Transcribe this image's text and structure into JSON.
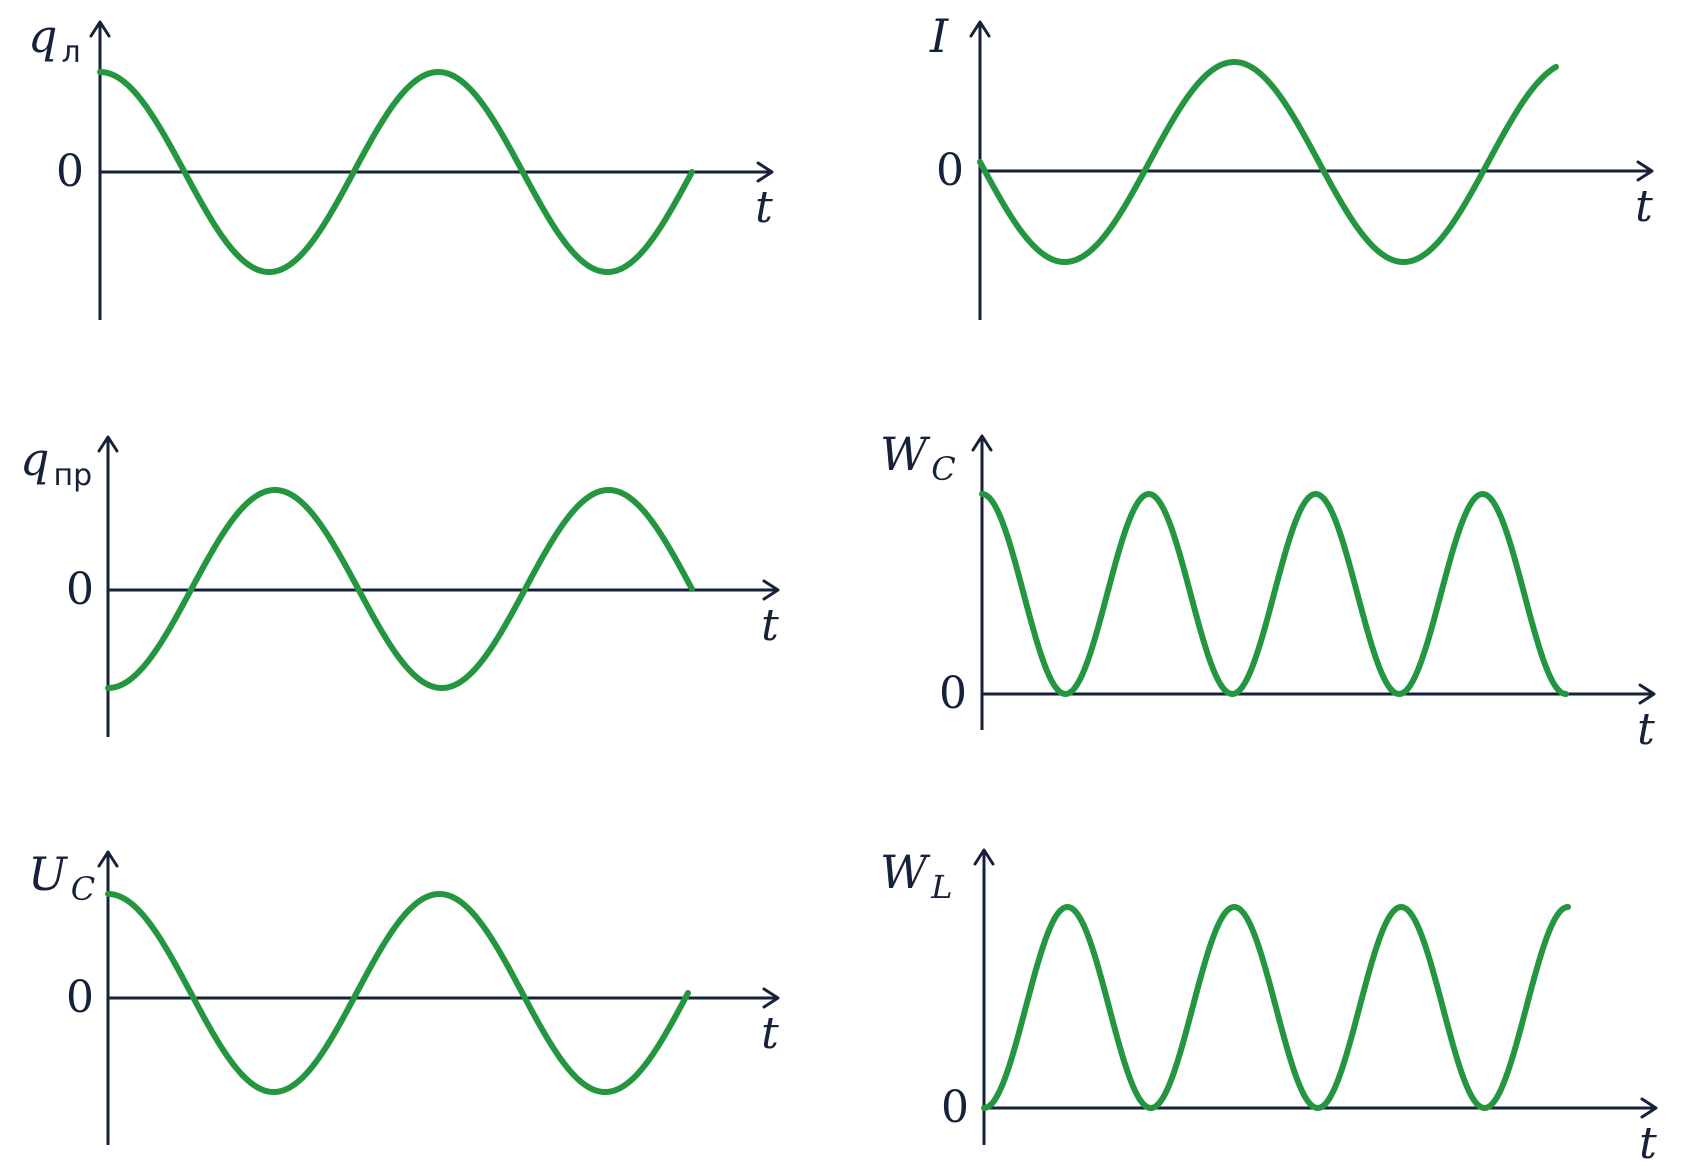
{
  "colors": {
    "curve": "#23963f",
    "axis": "#16213a"
  },
  "chart_data": [
    {
      "type": "line",
      "ylabel": "q",
      "ylabel_sub": "л",
      "ylabel_sub_style": "upright",
      "xlabel": "t",
      "zero_label": "0",
      "function": "cos",
      "cycles": 1.75,
      "y_range": [
        -1,
        1
      ],
      "series": [
        {
          "x": [
            0,
            0.25,
            0.5,
            0.75,
            1,
            1.25,
            1.5,
            1.75
          ],
          "values": [
            1,
            0,
            -1,
            0,
            1,
            0,
            -1,
            0
          ]
        }
      ]
    },
    {
      "type": "line",
      "ylabel": "I",
      "ylabel_sub": "",
      "ylabel_sub_style": "italic",
      "xlabel": "t",
      "zero_label": "0",
      "function": "-sin",
      "cycles": 1.7,
      "y_range": [
        -1,
        1
      ],
      "series": [
        {
          "x": [
            0,
            0.25,
            0.5,
            0.75,
            1,
            1.25,
            1.5,
            1.7
          ],
          "values": [
            0,
            -1,
            0,
            1,
            0,
            -1,
            0,
            0.95
          ]
        }
      ]
    },
    {
      "type": "line",
      "ylabel": "q",
      "ylabel_sub": "пр",
      "ylabel_sub_style": "upright",
      "xlabel": "t",
      "zero_label": "0",
      "function": "-cos",
      "cycles": 1.75,
      "y_range": [
        -1,
        1
      ],
      "series": [
        {
          "x": [
            0,
            0.25,
            0.5,
            0.75,
            1,
            1.25,
            1.5,
            1.75
          ],
          "values": [
            -1,
            0,
            1,
            0,
            -1,
            0,
            1,
            0
          ]
        }
      ]
    },
    {
      "type": "line",
      "ylabel": "W",
      "ylabel_sub": "C",
      "ylabel_sub_style": "italic",
      "xlabel": "t",
      "zero_label": "0",
      "function": "cos2",
      "cycles": 1.75,
      "y_range": [
        0,
        1
      ],
      "series": [
        {
          "x": [
            0,
            0.25,
            0.5,
            0.75,
            1,
            1.25,
            1.5,
            1.75
          ],
          "values": [
            1,
            0,
            1,
            0,
            1,
            0,
            1,
            0
          ]
        }
      ]
    },
    {
      "type": "line",
      "ylabel": "U",
      "ylabel_sub": "C",
      "ylabel_sub_style": "italic",
      "xlabel": "t",
      "zero_label": "0",
      "function": "cos",
      "cycles": 1.75,
      "y_range": [
        -1,
        1
      ],
      "series": [
        {
          "x": [
            0,
            0.25,
            0.5,
            0.75,
            1,
            1.25,
            1.5,
            1.75
          ],
          "values": [
            1,
            0,
            -1,
            0,
            1,
            0,
            -1,
            0
          ]
        }
      ]
    },
    {
      "type": "line",
      "ylabel": "W",
      "ylabel_sub": "L",
      "ylabel_sub_style": "italic",
      "xlabel": "t",
      "zero_label": "0",
      "function": "sin2",
      "cycles": 1.75,
      "y_range": [
        0,
        1
      ],
      "series": [
        {
          "x": [
            0,
            0.25,
            0.5,
            0.75,
            1,
            1.25,
            1.5,
            1.75
          ],
          "values": [
            0,
            1,
            0,
            1,
            0,
            1,
            0,
            1
          ]
        }
      ]
    }
  ]
}
